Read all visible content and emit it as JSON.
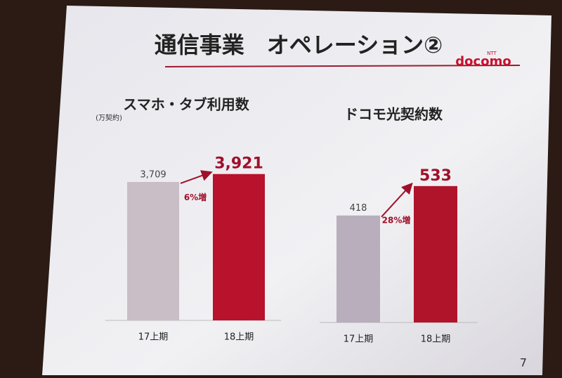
{
  "title": "通信事業　オペレーション②",
  "logo_small": "NTT",
  "logo": "docomo",
  "page_number": "7",
  "chart_data": [
    {
      "type": "bar",
      "title": "スマホ・タブ利用数",
      "unit": "(万契約)",
      "categories": [
        "17上期",
        "18上期"
      ],
      "values": [
        3709,
        3921
      ],
      "value_labels": [
        "3,709",
        "3,921"
      ],
      "colors": [
        "#c9bec6",
        "#b8122c"
      ],
      "annotation": "6%増",
      "ylim": [
        0,
        4800
      ]
    },
    {
      "type": "bar",
      "title": "ドコモ光契約数",
      "categories": [
        "17上期",
        "18上期"
      ],
      "values": [
        418,
        533
      ],
      "colors": [
        "#b9aebb",
        "#b0142b"
      ],
      "annotation": "28%増",
      "ylim": [
        0,
        700
      ]
    }
  ]
}
